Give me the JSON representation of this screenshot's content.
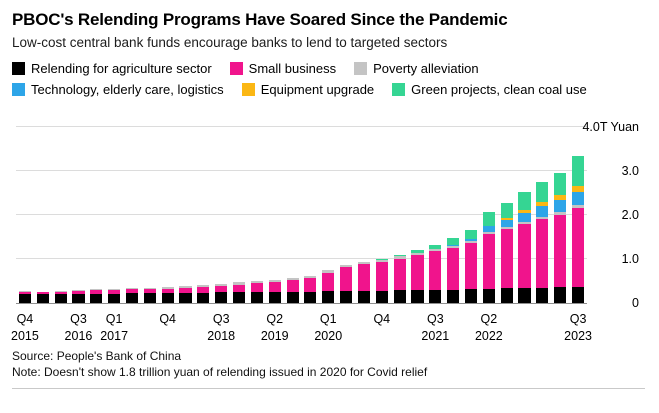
{
  "header": {
    "title": "PBOC's Relending Programs Have Soared Since the Pandemic",
    "subtitle": "Low-cost central bank funds encourage banks to lend to targeted sectors"
  },
  "legend": {
    "rows": [
      [
        {
          "label": "Relending for agriculture sector",
          "color": "#000000"
        },
        {
          "label": "Small business",
          "color": "#f0148c"
        },
        {
          "label": "Poverty alleviation",
          "color": "#c4c4c4"
        }
      ],
      [
        {
          "label": "Technology, elderly care, logistics",
          "color": "#2da5e8"
        },
        {
          "label": "Equipment upgrade",
          "color": "#fbb714"
        },
        {
          "label": "Green projects, clean coal use",
          "color": "#35d593"
        }
      ]
    ]
  },
  "chart_data": {
    "type": "bar",
    "stacked": true,
    "title": "PBOC's Relending Programs Have Soared Since the Pandemic",
    "ylabel": "Trillion yuan",
    "unit_label": "4.0T Yuan",
    "ylim": [
      0,
      4
    ],
    "grid": true,
    "legend_position": "top",
    "y_ticks": [
      {
        "value": 0,
        "label": "0"
      },
      {
        "value": 1,
        "label": "1.0"
      },
      {
        "value": 2,
        "label": "2.0"
      },
      {
        "value": 3,
        "label": "3.0"
      },
      {
        "value": 4,
        "label": "4.0T Yuan"
      }
    ],
    "categories": [
      "Q4 2015",
      "Q1 2016",
      "Q2 2016",
      "Q3 2016",
      "Q4 2016",
      "Q1 2017",
      "Q2 2017",
      "Q3 2017",
      "Q4 2017",
      "Q1 2018",
      "Q2 2018",
      "Q3 2018",
      "Q4 2018",
      "Q1 2019",
      "Q2 2019",
      "Q3 2019",
      "Q4 2019",
      "Q1 2020",
      "Q2 2020",
      "Q3 2020",
      "Q4 2020",
      "Q1 2021",
      "Q2 2021",
      "Q3 2021",
      "Q4 2021",
      "Q1 2022",
      "Q2 2022",
      "Q3 2022",
      "Q4 2022",
      "Q1 2023",
      "Q2 2023",
      "Q3 2023"
    ],
    "x_ticks": [
      {
        "bar_index": 0,
        "quarter": "Q4",
        "year": "2015"
      },
      {
        "bar_index": 3,
        "quarter": "Q3",
        "year": "2016"
      },
      {
        "bar_index": 5,
        "quarter": "Q1",
        "year": "2017"
      },
      {
        "bar_index": 8,
        "quarter": "Q4",
        "year": ""
      },
      {
        "bar_index": 11,
        "quarter": "Q3",
        "year": "2018"
      },
      {
        "bar_index": 14,
        "quarter": "Q2",
        "year": "2019"
      },
      {
        "bar_index": 17,
        "quarter": "Q1",
        "year": "2020"
      },
      {
        "bar_index": 20,
        "quarter": "Q4",
        "year": ""
      },
      {
        "bar_index": 23,
        "quarter": "Q3",
        "year": "2021"
      },
      {
        "bar_index": 26,
        "quarter": "Q2",
        "year": "2022"
      },
      {
        "bar_index": 31,
        "quarter": "Q3",
        "year": "2023"
      }
    ],
    "series": [
      {
        "name": "Relending for agriculture sector",
        "color": "#000000",
        "values": [
          0.21,
          0.2,
          0.2,
          0.2,
          0.21,
          0.21,
          0.22,
          0.22,
          0.22,
          0.23,
          0.23,
          0.24,
          0.24,
          0.25,
          0.25,
          0.26,
          0.26,
          0.27,
          0.27,
          0.28,
          0.28,
          0.29,
          0.29,
          0.3,
          0.3,
          0.31,
          0.32,
          0.33,
          0.34,
          0.35,
          0.36,
          0.37
        ]
      },
      {
        "name": "Small business",
        "color": "#f0148c",
        "values": [
          0.05,
          0.05,
          0.06,
          0.07,
          0.08,
          0.08,
          0.09,
          0.1,
          0.11,
          0.12,
          0.13,
          0.15,
          0.18,
          0.2,
          0.22,
          0.26,
          0.3,
          0.42,
          0.55,
          0.6,
          0.65,
          0.72,
          0.8,
          0.88,
          0.95,
          1.05,
          1.25,
          1.35,
          1.45,
          1.55,
          1.65,
          1.8
        ]
      },
      {
        "name": "Poverty alleviation",
        "color": "#c4c4c4",
        "values": [
          0.01,
          0.01,
          0.01,
          0.02,
          0.02,
          0.02,
          0.03,
          0.03,
          0.04,
          0.04,
          0.05,
          0.05,
          0.05,
          0.05,
          0.05,
          0.05,
          0.05,
          0.05,
          0.05,
          0.05,
          0.05,
          0.05,
          0.05,
          0.05,
          0.05,
          0.05,
          0.05,
          0.05,
          0.05,
          0.05,
          0.05,
          0.05
        ]
      },
      {
        "name": "Technology, elderly care, logistics",
        "color": "#2da5e8",
        "values": [
          0,
          0,
          0,
          0,
          0,
          0,
          0,
          0,
          0,
          0,
          0,
          0,
          0,
          0,
          0,
          0,
          0,
          0,
          0,
          0,
          0,
          0,
          0,
          0,
          0.03,
          0.05,
          0.12,
          0.15,
          0.2,
          0.25,
          0.28,
          0.3
        ]
      },
      {
        "name": "Equipment upgrade",
        "color": "#fbb714",
        "values": [
          0,
          0,
          0,
          0,
          0,
          0,
          0,
          0,
          0,
          0,
          0,
          0,
          0,
          0,
          0,
          0,
          0,
          0,
          0,
          0,
          0,
          0,
          0,
          0,
          0,
          0,
          0.02,
          0.05,
          0.08,
          0.1,
          0.12,
          0.13
        ]
      },
      {
        "name": "Green projects, clean coal use",
        "color": "#35d593",
        "values": [
          0,
          0,
          0,
          0,
          0,
          0,
          0,
          0,
          0,
          0,
          0,
          0,
          0,
          0,
          0,
          0,
          0,
          0,
          0,
          0,
          0.02,
          0.04,
          0.06,
          0.1,
          0.15,
          0.2,
          0.3,
          0.35,
          0.4,
          0.45,
          0.5,
          0.7
        ]
      }
    ]
  },
  "footer": {
    "source": "Source: People's Bank of China",
    "note": "Note: Doesn't show 1.8 trillion yuan of relending issued in 2020 for Covid relief"
  }
}
